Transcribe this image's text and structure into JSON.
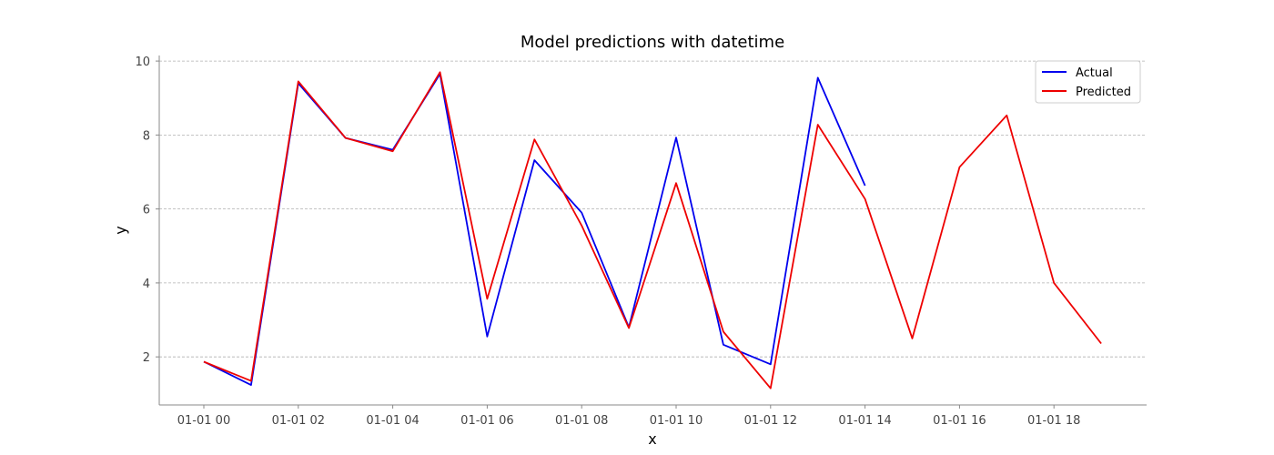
{
  "chart_data": {
    "type": "line",
    "title": "Model predictions with datetime",
    "xlabel": "x",
    "ylabel": "y",
    "x": [
      "01-01 00",
      "01-01 01",
      "01-01 02",
      "01-01 03",
      "01-01 04",
      "01-01 05",
      "01-01 06",
      "01-01 07",
      "01-01 08",
      "01-01 09",
      "01-01 10",
      "01-01 11",
      "01-01 12",
      "01-01 13",
      "01-01 14",
      "01-01 15",
      "01-01 16",
      "01-01 17",
      "01-01 18",
      "01-01 19"
    ],
    "x_tick_labels": [
      "01-01 00",
      "01-01 02",
      "01-01 04",
      "01-01 06",
      "01-01 08",
      "01-01 10",
      "01-01 12",
      "01-01 14",
      "01-01 16",
      "01-01 18"
    ],
    "y_ticks": [
      2,
      4,
      6,
      8,
      10
    ],
    "ylim": [
      0.7,
      10.15
    ],
    "grid": "horizontal",
    "legend_position": "top-right",
    "series": [
      {
        "name": "Actual",
        "color": "#0000ee",
        "values": [
          1.87,
          1.24,
          9.4,
          7.92,
          7.6,
          9.65,
          2.55,
          7.32,
          5.9,
          2.8,
          7.93,
          2.33,
          1.8,
          9.55,
          6.63,
          null,
          null,
          null,
          null,
          null
        ]
      },
      {
        "name": "Predicted",
        "color": "#ee0000",
        "values": [
          1.87,
          1.35,
          9.45,
          7.92,
          7.56,
          9.7,
          3.57,
          7.88,
          5.55,
          2.78,
          6.7,
          2.68,
          1.15,
          8.28,
          6.27,
          2.5,
          7.13,
          8.53,
          4.0,
          2.36
        ]
      }
    ]
  }
}
